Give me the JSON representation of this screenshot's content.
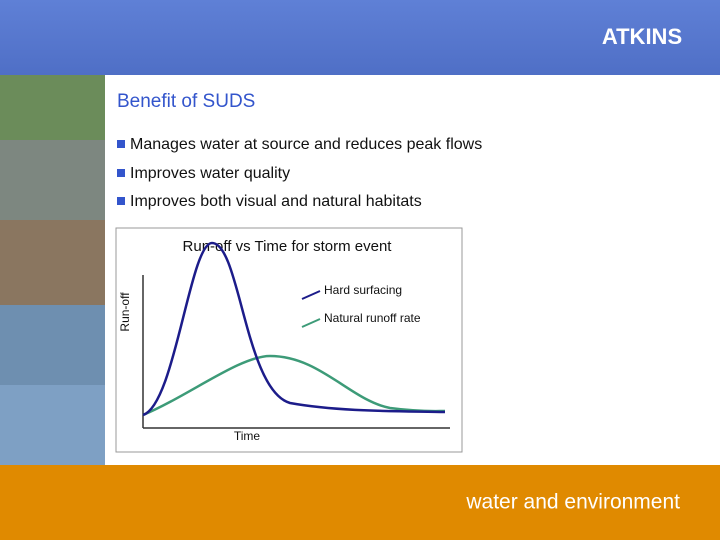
{
  "header": {
    "logo": "ATKINS",
    "title": "Benefit of SUDS"
  },
  "bullets": [
    "Manages water at source and reduces peak flows",
    "Improves water quality",
    "Improves both visual and natural habitats"
  ],
  "footer": "water and environment",
  "chart_data": {
    "type": "line",
    "title": "Run-off vs Time for storm event",
    "x_label": "Time",
    "y_label": "Run-off",
    "series": [
      {
        "name": "Hard surfacing",
        "color": "#1c1c8a"
      },
      {
        "name": "Natural runoff rate",
        "color": "#3d9b78"
      }
    ]
  }
}
